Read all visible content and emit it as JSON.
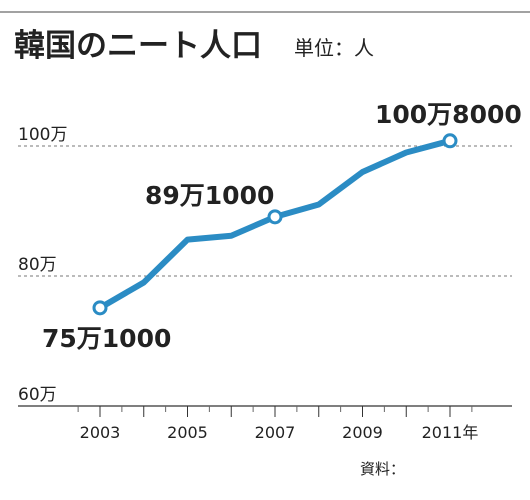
{
  "chart_data": {
    "type": "line",
    "title": "韓国のニート人口",
    "unit_label": "単位：人",
    "x": [
      2003,
      2004,
      2005,
      2006,
      2007,
      2008,
      2009,
      2010,
      2011
    ],
    "series": [
      {
        "values": [
          751000,
          790000,
          856000,
          862000,
          891000,
          910000,
          960000,
          990000,
          1008000
        ]
      }
    ],
    "xlim": [
      2003,
      2011
    ],
    "ylim": [
      600000,
      1000000
    ],
    "y_ticks": [
      {
        "value": 1000000,
        "label": "100万"
      },
      {
        "value": 800000,
        "label": "80万"
      },
      {
        "value": 600000,
        "label": "60万"
      }
    ],
    "x_tick_labels": [
      {
        "value": 2003,
        "label": "2003"
      },
      {
        "value": 2005,
        "label": "2005"
      },
      {
        "value": 2007,
        "label": "2007"
      },
      {
        "value": 2009,
        "label": "2009"
      },
      {
        "value": 2011,
        "label": "2011年"
      }
    ],
    "annotations": [
      {
        "x": 2003,
        "value": 751000,
        "label": "75万1000"
      },
      {
        "x": 2007,
        "value": 891000,
        "label": "89万1000"
      },
      {
        "x": 2011,
        "value": 1008000,
        "label": "100万8000"
      }
    ],
    "grid": true,
    "line_color": "#2b8cc4",
    "source_label": "資料："
  }
}
